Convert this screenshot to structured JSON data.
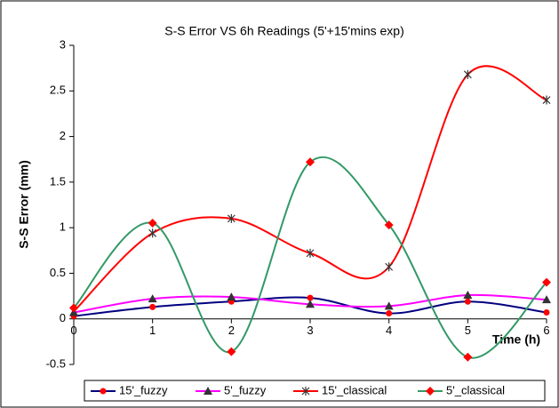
{
  "chart_data": {
    "type": "line",
    "title": "S-S Error VS 6h Readings (5'+15'mins exp)",
    "y_label": "S-S Error (mm)",
    "x_label": "Time (h)",
    "x": [
      0,
      1,
      2,
      3,
      4,
      5,
      6
    ],
    "xlim": [
      0,
      6
    ],
    "xticks": [
      0,
      1,
      2,
      3,
      4,
      5,
      6
    ],
    "ylim": [
      -0.5,
      3
    ],
    "yticks": [
      -0.5,
      0,
      0.5,
      1,
      1.5,
      2,
      2.5,
      3
    ],
    "smooth": true,
    "legend": "bottom",
    "series": [
      {
        "name": "15'_fuzzy",
        "color": "#000080",
        "marker": "circle",
        "marker_color": "#ff0000",
        "values": [
          0.03,
          0.13,
          0.19,
          0.23,
          0.06,
          0.19,
          0.07
        ]
      },
      {
        "name": "5'_fuzzy",
        "color": "#ff00ff",
        "marker": "triangle",
        "marker_color": "#333333",
        "values": [
          0.07,
          0.22,
          0.24,
          0.16,
          0.14,
          0.26,
          0.21
        ]
      },
      {
        "name": "15'_classical",
        "color": "#ff0000",
        "marker": "star",
        "marker_color": "#333333",
        "values": [
          0.08,
          0.94,
          1.1,
          0.72,
          0.57,
          2.68,
          2.4
        ]
      },
      {
        "name": "5'_classical",
        "color": "#339966",
        "marker": "diamond",
        "marker_color": "#ff0000",
        "values": [
          0.12,
          1.05,
          -0.36,
          1.72,
          1.03,
          -0.42,
          0.4
        ]
      }
    ]
  }
}
